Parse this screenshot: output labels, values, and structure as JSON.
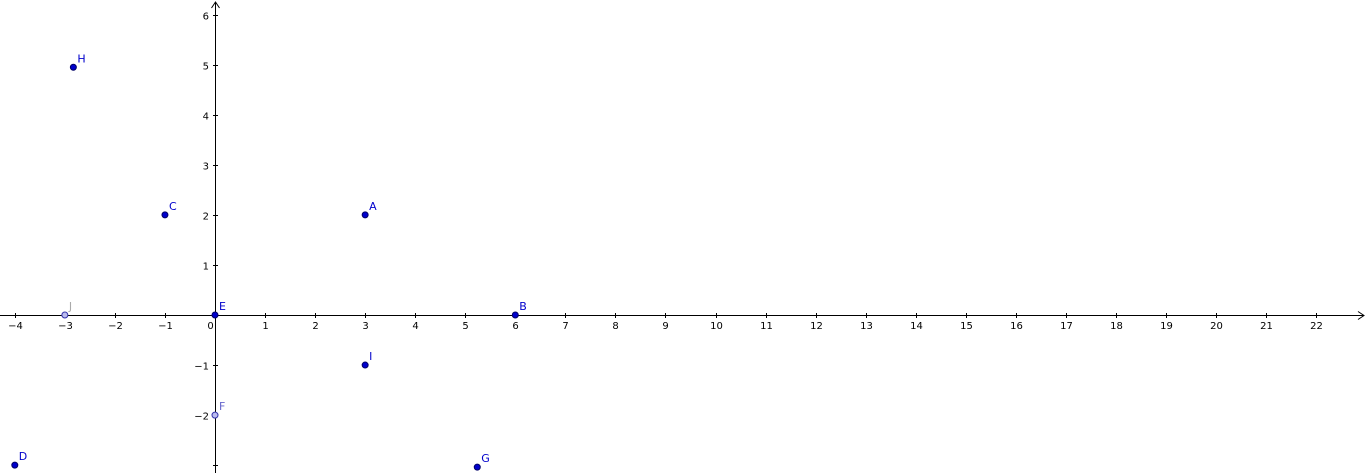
{
  "chart_data": {
    "type": "scatter",
    "xlim": [
      -4.3,
      22.97
    ],
    "ylim": [
      -3.07,
      6.29
    ],
    "grid": false,
    "x_ticks": [
      -4,
      -3,
      -2,
      -1,
      0,
      1,
      2,
      3,
      4,
      5,
      6,
      7,
      8,
      9,
      10,
      11,
      12,
      13,
      14,
      15,
      16,
      17,
      18,
      19,
      20,
      21,
      22
    ],
    "x_tick_labels": [
      "−4",
      "−3",
      "−2",
      "−1",
      "0",
      "1",
      "2",
      "3",
      "4",
      "5",
      "6",
      "7",
      "8",
      "9",
      "10",
      "11",
      "12",
      "13",
      "14",
      "15",
      "16",
      "17",
      "18",
      "19",
      "20",
      "21",
      "22"
    ],
    "y_ticks": [
      -3,
      -2,
      -1,
      1,
      2,
      3,
      4,
      5,
      6
    ],
    "y_tick_labels": [
      "",
      "−2",
      "−1",
      "1",
      "2",
      "3",
      "4",
      "5",
      "6"
    ],
    "points": [
      {
        "label": "A",
        "x": 3,
        "y": 2,
        "style": "dependent"
      },
      {
        "label": "B",
        "x": 6,
        "y": 0,
        "style": "dependent"
      },
      {
        "label": "C",
        "x": -1,
        "y": 2,
        "style": "dependent"
      },
      {
        "label": "D",
        "x": -4,
        "y": -3,
        "style": "dependent"
      },
      {
        "label": "E",
        "x": 0,
        "y": 0,
        "style": "dependent"
      },
      {
        "label": "F",
        "x": 0,
        "y": -2,
        "style": "free"
      },
      {
        "label": "G",
        "x": 5.24,
        "y": -3.04,
        "style": "dependent"
      },
      {
        "label": "H",
        "x": -2.83,
        "y": 4.95,
        "style": "dependent"
      },
      {
        "label": "I",
        "x": 3,
        "y": -1,
        "style": "dependent"
      },
      {
        "label": "J",
        "x": -3,
        "y": 0,
        "style": "free"
      }
    ],
    "colors": {
      "axis": "#000000",
      "dependent_fill": "#0000cc",
      "dependent_stroke": "#000066",
      "dependent_label": "#0000cc",
      "free_fill": "#bbbbee",
      "free_stroke": "#3333aa",
      "free_label": "#6666cc",
      "j_label": "#aaaaaa"
    }
  }
}
